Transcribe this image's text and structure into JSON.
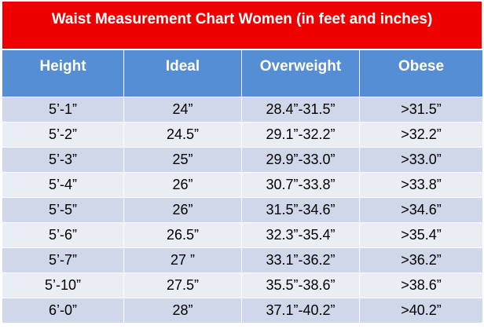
{
  "chart_data": {
    "type": "table",
    "title": "Waist Measurement Chart Women (in feet and inches)",
    "columns": [
      "Height",
      "Ideal",
      "Overweight",
      "Obese"
    ],
    "rows": [
      [
        "5’-1”",
        "24”",
        "28.4”-31.5”",
        ">31.5”"
      ],
      [
        "5’-2”",
        "24.5”",
        "29.1”-32.2”",
        ">32.2”"
      ],
      [
        "5’-3”",
        "25”",
        "29.9”-33.0”",
        ">33.0”"
      ],
      [
        "5’-4”",
        "26”",
        "30.7”-33.8”",
        ">33.8”"
      ],
      [
        "5’-5”",
        "26”",
        "31.5”-34.6”",
        ">34.6”"
      ],
      [
        "5’-6”",
        "26.5”",
        "32.3”-35.4”",
        ">35.4”"
      ],
      [
        "5’-7”",
        "27 ”",
        "33.1”-36.2”",
        ">36.2”"
      ],
      [
        "5’-10”",
        "27.5”",
        "35.5”-38.6”",
        ">38.6”"
      ],
      [
        "6’-0”",
        "28”",
        "37.1”-40.2”",
        ">40.2”"
      ]
    ]
  },
  "colors": {
    "title_background": "#ee0000",
    "header_background": "#558ed5",
    "row_dark": "#cfd7e8",
    "row_light": "#e9edf4",
    "header_text": "#ffffff",
    "cell_text": "#000000"
  }
}
